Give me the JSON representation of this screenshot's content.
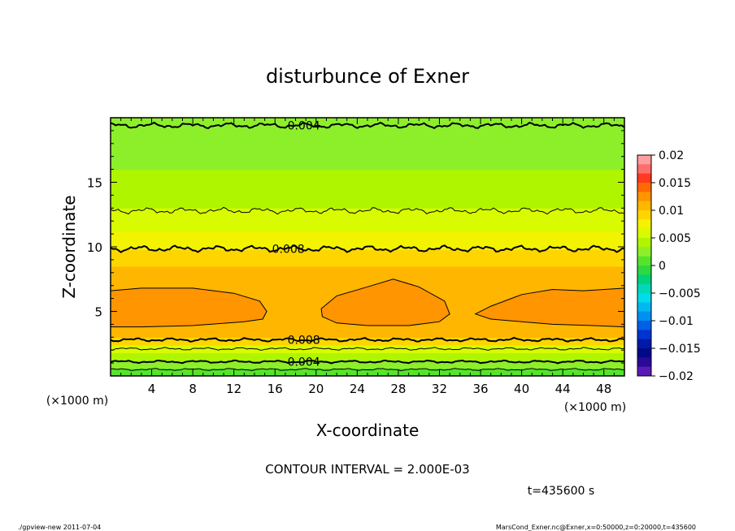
{
  "chart_data": {
    "type": "contour",
    "title": "disturbunce of Exner",
    "xlabel": "X-coordinate",
    "ylabel": "Z-coordinate",
    "x_unit": "(×1000 m)",
    "y_unit": "(×1000 m)",
    "x_ticks": [
      4,
      8,
      12,
      16,
      20,
      24,
      28,
      32,
      36,
      40,
      44,
      48
    ],
    "y_ticks": [
      5,
      10,
      15
    ],
    "xlim": [
      0,
      50
    ],
    "ylim": [
      0,
      20
    ],
    "contour_interval": "CONTOUR INTERVAL = 2.000E-03",
    "time_label": "t=435600 s",
    "colorbar": {
      "ticks": [
        "0.02",
        "0.015",
        "0.01",
        "0.005",
        "0",
        "−0.005",
        "−0.01",
        "−0.015",
        "−0.02"
      ],
      "colors": [
        "#ff9e9e",
        "#ff6e6e",
        "#ff3a20",
        "#ff6a00",
        "#ff9500",
        "#ffb600",
        "#ffd500",
        "#f3f300",
        "#d8fb00",
        "#b0f500",
        "#8cef2a",
        "#56e42a",
        "#2ed840",
        "#00d27a",
        "#00d8b8",
        "#00dcea",
        "#00b8f2",
        "#0090ef",
        "#0060e6",
        "#0034d2",
        "#001aa8",
        "#000a88",
        "#2a0a96",
        "#5a1ab8"
      ]
    },
    "bands": [
      {
        "z0": 0.0,
        "z1": 0.6,
        "color": "#56e42a"
      },
      {
        "z0": 0.6,
        "z1": 1.2,
        "color": "#8cef2a"
      },
      {
        "z0": 1.2,
        "z1": 1.8,
        "color": "#b0f500"
      },
      {
        "z0": 1.8,
        "z1": 2.4,
        "color": "#d8fb00"
      },
      {
        "z0": 2.4,
        "z1": 3.0,
        "color": "#ffd500"
      },
      {
        "z0": 3.0,
        "z1": 4.0,
        "color": "#ffb600"
      },
      {
        "z0": 4.0,
        "z1": 7.4,
        "color": "#ffb600"
      },
      {
        "z0": 7.4,
        "z1": 8.5,
        "color": "#ffb600"
      },
      {
        "z0": 8.5,
        "z1": 9.8,
        "color": "#ffd500"
      },
      {
        "z0": 9.8,
        "z1": 11.2,
        "color": "#f3f300"
      },
      {
        "z0": 11.2,
        "z1": 13.0,
        "color": "#d8fb00"
      },
      {
        "z0": 13.0,
        "z1": 16.0,
        "color": "#b0f500"
      },
      {
        "z0": 16.0,
        "z1": 18.5,
        "color": "#8cef2a"
      },
      {
        "z0": 18.5,
        "z1": 20.0,
        "color": "#8cef2a"
      }
    ],
    "blobs": [
      {
        "name": "blob-left",
        "color": "#ff9500",
        "pts": [
          [
            0,
            6.6
          ],
          [
            3,
            6.8
          ],
          [
            8,
            6.8
          ],
          [
            12,
            6.4
          ],
          [
            14.5,
            5.8
          ],
          [
            15.2,
            5.0
          ],
          [
            14.8,
            4.4
          ],
          [
            13,
            4.2
          ],
          [
            8,
            3.9
          ],
          [
            3,
            3.8
          ],
          [
            0,
            3.8
          ]
        ]
      },
      {
        "name": "blob-center",
        "color": "#ff9500",
        "pts": [
          [
            20.5,
            5.2
          ],
          [
            22,
            6.2
          ],
          [
            25,
            6.9
          ],
          [
            27.5,
            7.5
          ],
          [
            30,
            6.9
          ],
          [
            32.5,
            5.8
          ],
          [
            33,
            4.8
          ],
          [
            32,
            4.2
          ],
          [
            29,
            3.9
          ],
          [
            25,
            3.9
          ],
          [
            22,
            4.1
          ],
          [
            20.6,
            4.6
          ]
        ]
      },
      {
        "name": "blob-right",
        "color": "#ff9500",
        "pts": [
          [
            35.5,
            4.8
          ],
          [
            37,
            5.4
          ],
          [
            40,
            6.3
          ],
          [
            43,
            6.7
          ],
          [
            46,
            6.6
          ],
          [
            50,
            6.8
          ],
          [
            50,
            3.8
          ],
          [
            47,
            3.9
          ],
          [
            43,
            4.0
          ],
          [
            40,
            4.2
          ],
          [
            37,
            4.4
          ]
        ]
      }
    ],
    "contours": [
      {
        "name": "contour-top",
        "z": 19.4,
        "amp": 0.12,
        "bold": true,
        "label": "0.004",
        "label_x": 18.8
      },
      {
        "name": "contour-upper",
        "z": 12.8,
        "amp": 0.14,
        "bold": false,
        "label": "",
        "label_x": 0
      },
      {
        "name": "contour-mid",
        "z": 9.85,
        "amp": 0.14,
        "bold": true,
        "label": "0.008",
        "label_x": 17.3
      },
      {
        "name": "contour-low-1",
        "z": 2.8,
        "amp": 0.08,
        "bold": true,
        "label": "0.008",
        "label_x": 18.8
      },
      {
        "name": "contour-low-2",
        "z": 2.1,
        "amp": 0.06,
        "bold": false,
        "label": "",
        "label_x": 0
      },
      {
        "name": "contour-low-3",
        "z": 1.1,
        "amp": 0.06,
        "bold": true,
        "label": "0.004",
        "label_x": 18.8
      },
      {
        "name": "contour-low-4",
        "z": 0.5,
        "amp": 0.05,
        "bold": false,
        "label": "",
        "label_x": 0
      }
    ]
  },
  "footer": {
    "left": "./gpview-new  2011-07-04",
    "right": "MarsCond_Exner.nc@Exner,x=0:50000,z=0:20000,t=435600"
  }
}
